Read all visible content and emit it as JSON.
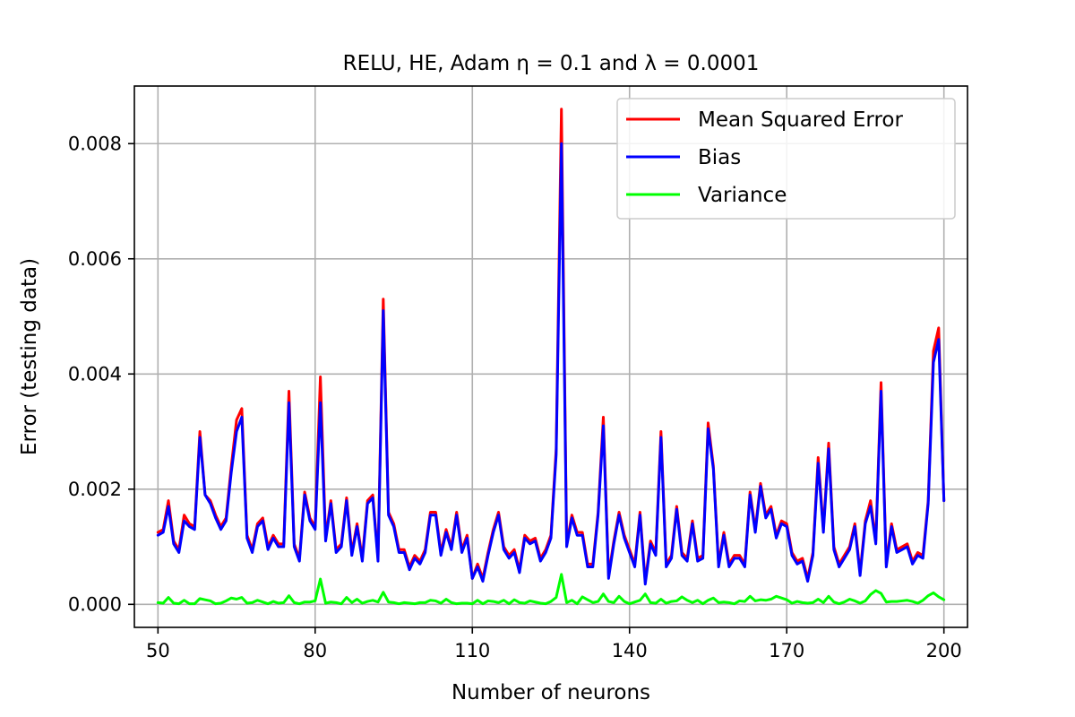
{
  "chart_data": {
    "type": "line",
    "title": "RELU, HE, Adam η = 0.1 and λ = 0.0001",
    "xlabel": "Number of neurons",
    "ylabel": "Error (testing data)",
    "xlim": [
      45.5,
      204.5
    ],
    "ylim": [
      -0.0004,
      0.009
    ],
    "xticks": [
      50,
      80,
      110,
      140,
      170,
      200
    ],
    "yticks": [
      0.0,
      0.002,
      0.004,
      0.006,
      0.008
    ],
    "ytick_labels": [
      "0.000",
      "0.002",
      "0.004",
      "0.006",
      "0.008"
    ],
    "grid": true,
    "legend_position": "top-right",
    "x": [
      50,
      51,
      52,
      53,
      54,
      55,
      56,
      57,
      58,
      59,
      60,
      61,
      62,
      63,
      64,
      65,
      66,
      67,
      68,
      69,
      70,
      71,
      72,
      73,
      74,
      75,
      76,
      77,
      78,
      79,
      80,
      81,
      82,
      83,
      84,
      85,
      86,
      87,
      88,
      89,
      90,
      91,
      92,
      93,
      94,
      95,
      96,
      97,
      98,
      99,
      100,
      101,
      102,
      103,
      104,
      105,
      106,
      107,
      108,
      109,
      110,
      111,
      112,
      113,
      114,
      115,
      116,
      117,
      118,
      119,
      120,
      121,
      122,
      123,
      124,
      125,
      126,
      127,
      128,
      129,
      130,
      131,
      132,
      133,
      134,
      135,
      136,
      137,
      138,
      139,
      140,
      141,
      142,
      143,
      144,
      145,
      146,
      147,
      148,
      149,
      150,
      151,
      152,
      153,
      154,
      155,
      156,
      157,
      158,
      159,
      160,
      161,
      162,
      163,
      164,
      165,
      166,
      167,
      168,
      169,
      170,
      171,
      172,
      173,
      174,
      175,
      176,
      177,
      178,
      179,
      180,
      181,
      182,
      183,
      184,
      185,
      186,
      187,
      188,
      189,
      190,
      191,
      192,
      193,
      194,
      195,
      196,
      197,
      198,
      199,
      200
    ],
    "series": [
      {
        "name": "Mean Squared Error",
        "color": "#ff0000",
        "values": [
          0.00125,
          0.0013,
          0.0018,
          0.0011,
          0.00095,
          0.00155,
          0.0014,
          0.00135,
          0.003,
          0.0019,
          0.0018,
          0.00155,
          0.00135,
          0.0015,
          0.0024,
          0.0032,
          0.0034,
          0.0012,
          0.00095,
          0.0014,
          0.0015,
          0.001,
          0.0012,
          0.00105,
          0.00105,
          0.0037,
          0.00105,
          0.0008,
          0.00195,
          0.0015,
          0.00135,
          0.00395,
          0.00115,
          0.0018,
          0.00095,
          0.00105,
          0.00185,
          0.0009,
          0.0014,
          0.0008,
          0.0018,
          0.0019,
          0.0008,
          0.0053,
          0.0016,
          0.0014,
          0.00095,
          0.00095,
          0.00065,
          0.00085,
          0.00075,
          0.00095,
          0.0016,
          0.0016,
          0.0009,
          0.0013,
          0.001,
          0.0016,
          0.00095,
          0.0012,
          0.00045,
          0.0007,
          0.00045,
          0.0009,
          0.0013,
          0.0016,
          0.001,
          0.00085,
          0.00095,
          0.0006,
          0.0012,
          0.0011,
          0.00115,
          0.0008,
          0.00095,
          0.0012,
          0.0027,
          0.0086,
          0.00105,
          0.00155,
          0.00125,
          0.00125,
          0.0007,
          0.0007,
          0.0016,
          0.00325,
          0.0005,
          0.0011,
          0.0016,
          0.0012,
          0.00095,
          0.0007,
          0.0016,
          0.0004,
          0.0011,
          0.0009,
          0.003,
          0.0007,
          0.00085,
          0.0017,
          0.0009,
          0.0008,
          0.00145,
          0.0008,
          0.00085,
          0.00315,
          0.0024,
          0.0007,
          0.00125,
          0.0007,
          0.00085,
          0.00085,
          0.0007,
          0.00195,
          0.0013,
          0.0021,
          0.00155,
          0.0017,
          0.0012,
          0.00145,
          0.0014,
          0.0009,
          0.00075,
          0.0008,
          0.00045,
          0.0009,
          0.00255,
          0.0013,
          0.0028,
          0.001,
          0.0007,
          0.00085,
          0.001,
          0.0014,
          0.00055,
          0.00145,
          0.0018,
          0.0011,
          0.00385,
          0.0007,
          0.0014,
          0.00095,
          0.001,
          0.00105,
          0.00075,
          0.0009,
          0.00085,
          0.0018,
          0.0044,
          0.0048,
          0.0018
        ]
      },
      {
        "name": "Bias",
        "color": "#0000ff",
        "values": [
          0.0012,
          0.00125,
          0.0017,
          0.00105,
          0.0009,
          0.00145,
          0.00135,
          0.0013,
          0.0029,
          0.0019,
          0.00175,
          0.0015,
          0.0013,
          0.00145,
          0.0023,
          0.003,
          0.00325,
          0.00115,
          0.0009,
          0.00135,
          0.00145,
          0.00095,
          0.00115,
          0.001,
          0.001,
          0.0035,
          0.001,
          0.00075,
          0.0019,
          0.00145,
          0.0013,
          0.0035,
          0.0011,
          0.00175,
          0.0009,
          0.001,
          0.0018,
          0.00085,
          0.00135,
          0.00075,
          0.00175,
          0.00185,
          0.00075,
          0.0051,
          0.00155,
          0.00135,
          0.0009,
          0.0009,
          0.0006,
          0.0008,
          0.0007,
          0.0009,
          0.00155,
          0.00155,
          0.00085,
          0.00125,
          0.00095,
          0.00155,
          0.0009,
          0.00115,
          0.00045,
          0.00065,
          0.0004,
          0.00085,
          0.00125,
          0.00155,
          0.00095,
          0.0008,
          0.0009,
          0.00055,
          0.00115,
          0.00105,
          0.0011,
          0.00075,
          0.0009,
          0.00115,
          0.0026,
          0.008,
          0.001,
          0.0015,
          0.0012,
          0.0012,
          0.00065,
          0.00065,
          0.00155,
          0.0031,
          0.00045,
          0.00105,
          0.00155,
          0.00115,
          0.0009,
          0.00065,
          0.00155,
          0.00035,
          0.00105,
          0.00085,
          0.0029,
          0.00065,
          0.0008,
          0.00165,
          0.00085,
          0.00075,
          0.0014,
          0.00075,
          0.0008,
          0.00305,
          0.00235,
          0.00065,
          0.0012,
          0.00065,
          0.0008,
          0.0008,
          0.00065,
          0.0019,
          0.00125,
          0.00205,
          0.0015,
          0.00165,
          0.00115,
          0.0014,
          0.00135,
          0.00085,
          0.0007,
          0.00075,
          0.0004,
          0.00085,
          0.00245,
          0.00125,
          0.0027,
          0.00095,
          0.00065,
          0.0008,
          0.00095,
          0.00135,
          0.0005,
          0.0014,
          0.0017,
          0.00105,
          0.0037,
          0.00065,
          0.00135,
          0.0009,
          0.00095,
          0.001,
          0.0007,
          0.00085,
          0.0008,
          0.00175,
          0.0042,
          0.0046,
          0.0018
        ]
      },
      {
        "name": "Variance",
        "color": "#00ff00",
        "values": [
          3e-05,
          2e-05,
          0.00012,
          2e-05,
          1e-05,
          7e-05,
          1e-05,
          1e-05,
          0.0001,
          8e-05,
          6e-05,
          1e-05,
          2e-05,
          6e-05,
          0.00011,
          9e-05,
          0.00012,
          2e-05,
          3e-05,
          7e-05,
          4e-05,
          1e-05,
          5e-05,
          2e-05,
          3e-05,
          0.00015,
          3e-05,
          1e-05,
          4e-05,
          4e-05,
          6e-05,
          0.00044,
          2e-05,
          4e-05,
          3e-05,
          1e-05,
          0.00012,
          3e-05,
          9e-05,
          2e-05,
          5e-05,
          7e-05,
          4e-05,
          0.00021,
          4e-05,
          3e-05,
          1e-05,
          3e-05,
          2e-05,
          1e-05,
          3e-05,
          3e-05,
          7e-05,
          6e-05,
          2e-05,
          9e-05,
          3e-05,
          1e-05,
          2e-05,
          2e-05,
          1e-05,
          7e-05,
          1e-05,
          6e-05,
          5e-05,
          3e-05,
          7e-05,
          1e-05,
          8e-05,
          3e-05,
          2e-05,
          6e-05,
          4e-05,
          2e-05,
          1e-05,
          5e-05,
          0.00012,
          0.00052,
          3e-05,
          7e-05,
          1e-05,
          0.00013,
          8e-05,
          3e-05,
          5e-05,
          0.00018,
          5e-05,
          3e-05,
          0.00014,
          5e-05,
          1e-05,
          4e-05,
          7e-05,
          0.00018,
          3e-05,
          2e-05,
          9e-05,
          2e-05,
          5e-05,
          6e-05,
          0.00013,
          7e-05,
          3e-05,
          7e-05,
          1e-05,
          7e-05,
          0.00011,
          3e-05,
          4e-05,
          3e-05,
          1e-05,
          6e-05,
          5e-05,
          0.00014,
          6e-05,
          8e-05,
          7e-05,
          9e-05,
          0.00014,
          0.00011,
          8e-05,
          2e-05,
          5e-05,
          3e-05,
          2e-05,
          3e-05,
          9e-05,
          3e-05,
          0.00014,
          4e-05,
          1e-05,
          4e-05,
          9e-05,
          6e-05,
          2e-05,
          6e-05,
          0.00017,
          0.00024,
          0.00019,
          4e-05,
          5e-05,
          5e-05,
          6e-05,
          7e-05,
          5e-05,
          2e-05,
          7e-05,
          0.00015,
          0.0002,
          0.00013,
          8e-05
        ]
      }
    ]
  }
}
